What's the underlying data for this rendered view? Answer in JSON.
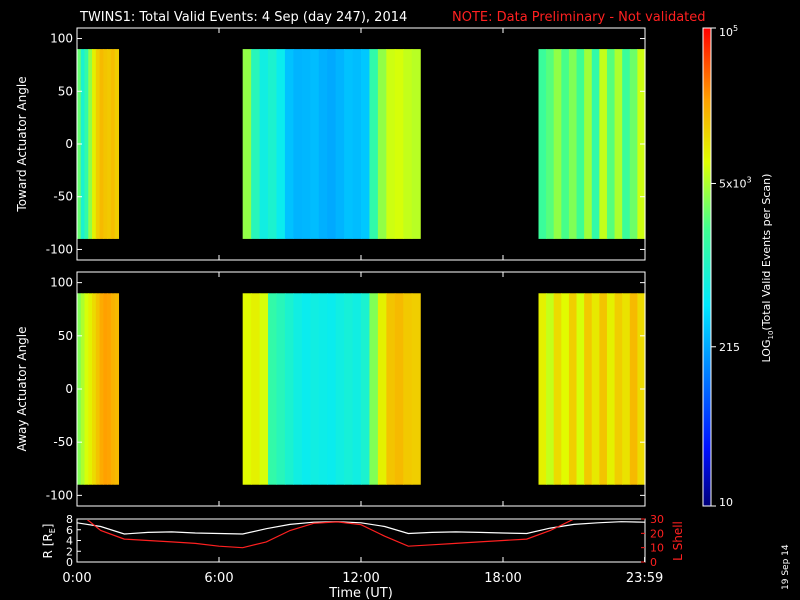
{
  "header": {
    "title": "TWINS1: Total Valid Events:  4 Sep (day 247), 2014",
    "note": "NOTE: Data Preliminary - Not validated"
  },
  "colors": {
    "background": "#000000",
    "note": "#ff2020",
    "r_line": "#ffffff",
    "l_line": "#ff2020",
    "axis": "#ffffff"
  },
  "colorbar": {
    "label_prefix": "LOG",
    "label_sub": "10",
    "label_suffix": "(Total Valid Events per Scan)",
    "ticks": [
      {
        "label": "10",
        "value": 10
      },
      {
        "label": "215",
        "value": 215
      },
      {
        "label": "5x10",
        "sup": "3",
        "value": 5000
      },
      {
        "label": "10",
        "sup": "5",
        "value": 100000
      }
    ],
    "range": [
      10,
      100000
    ],
    "scale": "log"
  },
  "footer": {
    "date_stamp": "19 Sep 14"
  },
  "chart_data": [
    {
      "type": "heatmap",
      "ylabel": "Toward Actuator Angle",
      "ylim": [
        -110,
        110
      ],
      "yticks": [
        -100,
        -50,
        0,
        50,
        100
      ],
      "xlim": [
        0,
        24
      ],
      "data_ylim": [
        -90,
        90
      ],
      "bands": [
        {
          "start": 0.0,
          "end": 1.75,
          "profile": [
            2800,
            900,
            1500,
            4000,
            9000,
            14000,
            18000,
            16000,
            15000,
            17000,
            14000
          ]
        },
        {
          "start": 7.0,
          "end": 14.5,
          "profile": [
            4000,
            1200,
            700,
            900,
            600,
            300,
            250,
            260,
            280,
            240,
            220,
            250,
            300,
            280,
            320,
            1500,
            4000,
            6500,
            7000,
            6000,
            5500
          ]
        },
        {
          "start": 19.5,
          "end": 24.0,
          "profile": [
            1800,
            2500,
            4000,
            2200,
            3500,
            2000,
            4500,
            1500,
            6000,
            2500,
            5000,
            1800,
            3000,
            6500
          ]
        }
      ]
    },
    {
      "type": "heatmap",
      "ylabel": "Away Actuator Angle",
      "ylim": [
        -110,
        110
      ],
      "yticks": [
        -100,
        -50,
        0,
        50,
        100
      ],
      "xlim": [
        0,
        24
      ],
      "data_ylim": [
        -90,
        90
      ],
      "bands": [
        {
          "start": 0.0,
          "end": 1.75,
          "profile": [
            3500,
            5000,
            7000,
            9000,
            12000,
            16000,
            22000,
            25000,
            24000,
            20000,
            18000
          ]
        },
        {
          "start": 7.0,
          "end": 14.5,
          "profile": [
            8000,
            9000,
            7000,
            1500,
            1200,
            900,
            700,
            600,
            700,
            650,
            600,
            700,
            800,
            700,
            900,
            3500,
            9000,
            16000,
            18000,
            15000,
            14000
          ]
        },
        {
          "start": 19.5,
          "end": 24.0,
          "profile": [
            9000,
            6000,
            12000,
            8000,
            14000,
            7000,
            15000,
            10000,
            16000,
            9000,
            14000,
            11000,
            18000,
            12000
          ]
        }
      ]
    },
    {
      "type": "line",
      "xlabel": "Time (UT)",
      "xlim": [
        0,
        24
      ],
      "xticks": [
        {
          "value": 0,
          "label": "0:00"
        },
        {
          "value": 6,
          "label": "6:00"
        },
        {
          "value": 12,
          "label": "12:00"
        },
        {
          "value": 18,
          "label": "18:00"
        },
        {
          "value": 23.983,
          "label": "23:59"
        }
      ],
      "ylabel_left": "R [R",
      "ylabel_left_sub": "E",
      "ylabel_left_end": "]",
      "ylim_left": [
        0,
        8
      ],
      "yticks_left": [
        0,
        2,
        4,
        6,
        8
      ],
      "ylabel_right": "L Shell",
      "ylim_right": [
        0,
        30
      ],
      "yticks_right": [
        0,
        10,
        20,
        30
      ],
      "series": [
        {
          "name": "R [RE]",
          "axis": "left",
          "color": "#ffffff",
          "x": [
            0,
            1,
            2,
            3,
            4,
            5,
            6,
            7,
            8,
            9,
            10,
            11,
            12,
            13,
            14,
            15,
            16,
            17,
            18,
            19,
            20,
            21,
            22,
            23,
            24
          ],
          "y": [
            7.3,
            6.6,
            5.2,
            5.5,
            5.6,
            5.4,
            5.3,
            5.2,
            6.2,
            7.0,
            7.4,
            7.5,
            7.3,
            6.6,
            5.3,
            5.5,
            5.6,
            5.5,
            5.4,
            5.3,
            6.3,
            7.0,
            7.3,
            7.5,
            7.4
          ]
        },
        {
          "name": "L Shell",
          "axis": "right",
          "color": "#ff2020",
          "x": [
            0.4,
            1,
            2,
            3,
            4,
            5,
            6,
            7,
            8,
            9,
            10,
            11,
            12,
            13,
            14,
            15,
            16,
            17,
            18,
            19,
            20,
            21
          ],
          "y": [
            30,
            22,
            16,
            15,
            14,
            13,
            11,
            10,
            14,
            22,
            27,
            28,
            26,
            18,
            11,
            12,
            13,
            14,
            15,
            16,
            22,
            30
          ]
        }
      ]
    }
  ]
}
